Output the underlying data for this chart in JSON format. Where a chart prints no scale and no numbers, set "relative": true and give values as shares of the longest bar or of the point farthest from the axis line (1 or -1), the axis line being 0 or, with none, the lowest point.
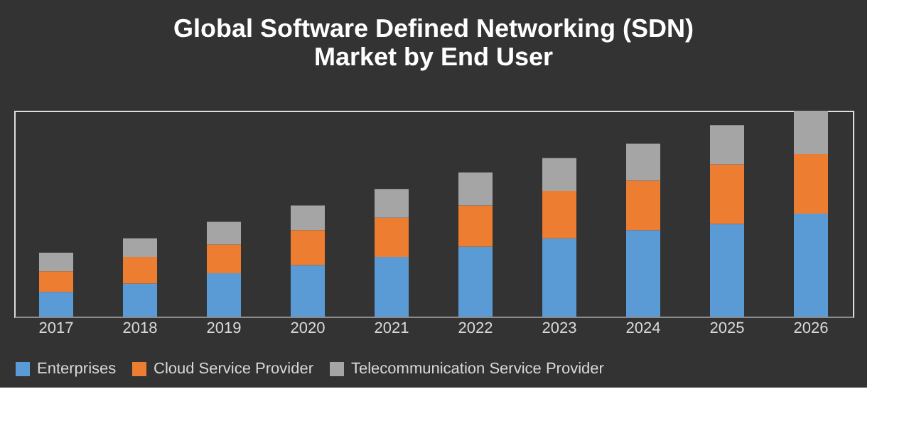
{
  "chart_data": {
    "type": "bar",
    "title": "Global Software Defined Networking (SDN)\nMarket by End User",
    "categories": [
      "2017",
      "2018",
      "2019",
      "2020",
      "2021",
      "2022",
      "2023",
      "2024",
      "2025",
      "2026"
    ],
    "stacked": true,
    "relative": true,
    "legend": "bottom",
    "grid": false,
    "series": [
      {
        "name": "Enterprises",
        "color": "#5b9bd5",
        "values": [
          0.12,
          0.16,
          0.21,
          0.25,
          0.29,
          0.34,
          0.38,
          0.42,
          0.45,
          0.5
        ]
      },
      {
        "name": "Cloud Service Provider",
        "color": "#ed7d31",
        "values": [
          0.1,
          0.13,
          0.14,
          0.17,
          0.19,
          0.2,
          0.23,
          0.24,
          0.29,
          0.29
        ]
      },
      {
        "name": "Telecommunication Service Provider",
        "color": "#a5a5a5",
        "values": [
          0.09,
          0.09,
          0.11,
          0.12,
          0.14,
          0.16,
          0.16,
          0.18,
          0.19,
          0.21
        ]
      }
    ]
  }
}
